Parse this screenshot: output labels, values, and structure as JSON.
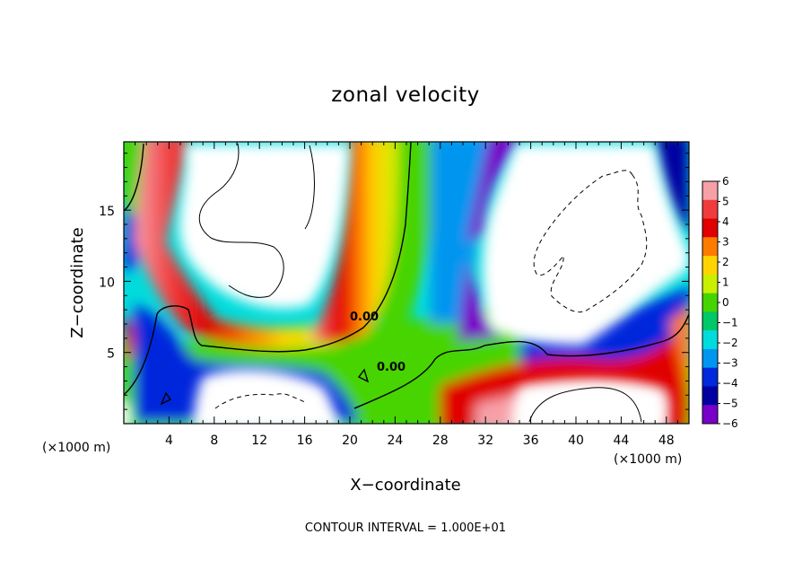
{
  "chart_data": {
    "type": "heatmap",
    "title": "zonal velocity",
    "xlabel": "X−coordinate",
    "ylabel": "Z−coordinate",
    "x_unit_left": "(×1000 m)",
    "x_unit_right": "(×1000 m)",
    "xlim": [
      0,
      50
    ],
    "ylim": [
      0,
      19.8
    ],
    "x_ticks": [
      4,
      8,
      12,
      16,
      20,
      24,
      28,
      32,
      36,
      40,
      44,
      48
    ],
    "x_tick_labels": [
      "4",
      "8",
      "12",
      "16",
      "20",
      "24",
      "28",
      "32",
      "36",
      "40",
      "44",
      "48"
    ],
    "y_ticks": [
      5,
      10,
      15
    ],
    "y_tick_labels": [
      "5",
      "10",
      "15"
    ],
    "colorbar": {
      "values": [
        6,
        5,
        4,
        3,
        2,
        1,
        0,
        -1,
        -2,
        -3,
        -4,
        -5,
        -6
      ],
      "labels": [
        "6",
        "5",
        "4",
        "3",
        "2",
        "1",
        "0",
        "−1",
        "−2",
        "−3",
        "−4",
        "−5",
        "−6"
      ],
      "colors": [
        "#f7a0a8",
        "#f03c3c",
        "#e00000",
        "#ff7b00",
        "#ffd400",
        "#c8f000",
        "#46d400",
        "#00c866",
        "#00dcdc",
        "#0096f0",
        "#0028dc",
        "#0000a0",
        "#7800c8"
      ]
    },
    "contour_labels": [
      "0.00",
      "0.00"
    ],
    "footnote": "CONTOUR INTERVAL = 1.000E+01",
    "grid": false,
    "legend": "right colorbar"
  }
}
